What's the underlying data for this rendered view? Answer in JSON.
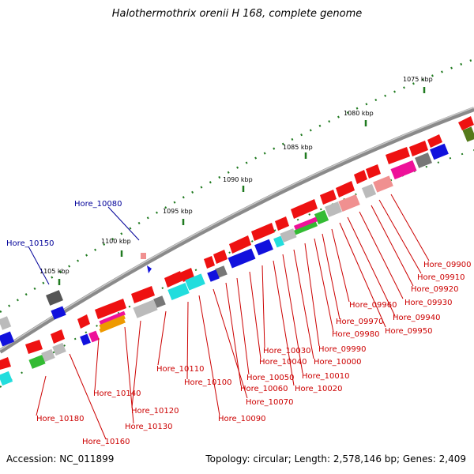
{
  "title": "Halothermothrix orenii H 168, complete genome",
  "footer": {
    "accession": "Accession: NC_011899",
    "summary": "Topology: circular; Length: 2,578,146 bp; Genes: 2,409"
  },
  "colors": {
    "backbone": "#888888",
    "tick": "#1f7a1f",
    "label_red": "#cc0000",
    "label_blue": "#000099"
  },
  "scale_labels": [
    "1075 kbp",
    "1080 kbp",
    "1085 kbp",
    "1090 kbp",
    "1095 kbp",
    "1100 kbp",
    "1105 kbp"
  ],
  "gene_labels_red": [
    "Hore_09900",
    "Hore_09910",
    "Hore_09920",
    "Hore_09930",
    "Hore_09940",
    "Hore_09950",
    "Hore_09960",
    "Hore_09970",
    "Hore_09980",
    "Hore_09990",
    "Hore_10000",
    "Hore_10010",
    "Hore_10020",
    "Hore_10030",
    "Hore_10040",
    "Hore_10050",
    "Hore_10060",
    "Hore_10070",
    "Hore_10090",
    "Hore_10100",
    "Hore_10110",
    "Hore_10120",
    "Hore_10130",
    "Hore_10140",
    "Hore_10160",
    "Hore_10180"
  ],
  "gene_labels_blue": [
    "Hore_10080",
    "Hore_10150"
  ]
}
